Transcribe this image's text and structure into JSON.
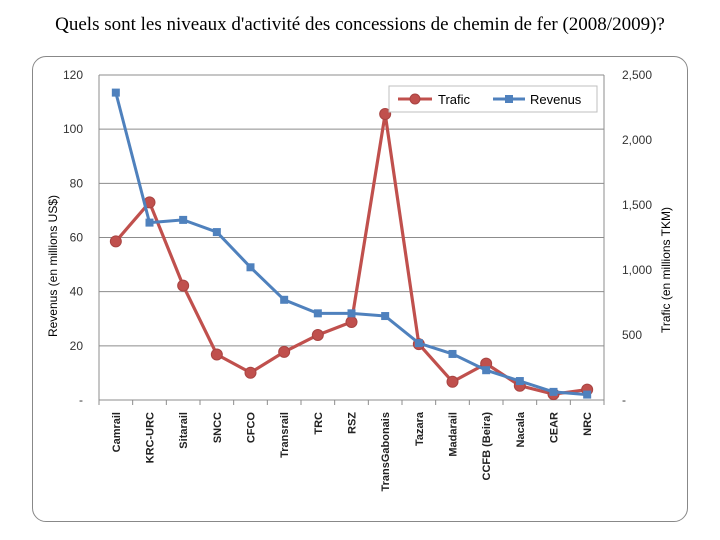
{
  "title": "Quels sont les niveaux d'activité des concessions de chemin de fer (2008/2009)?",
  "colors": {
    "trafic": "#c0504d",
    "revenus": "#4f81bd",
    "grid": "#8c8c8c"
  },
  "chart_data": {
    "type": "line",
    "categories": [
      "Camrail",
      "KRC-URC",
      "Sitarail",
      "SNCC",
      "CFCO",
      "Transrail",
      "TRC",
      "RSZ",
      "TransGabonais",
      "Tazara",
      "Madarail",
      "CCFB (Beira)",
      "Nacala",
      "CEAR",
      "NRC"
    ],
    "series": [
      {
        "name": "Trafic",
        "axis": "right",
        "marker": "circle",
        "values": [
          1220,
          1520,
          880,
          350,
          210,
          370,
          500,
          600,
          2200,
          430,
          140,
          280,
          110,
          45,
          80
        ]
      },
      {
        "name": "Revenus",
        "axis": "left",
        "marker": "square",
        "values": [
          113.5,
          65.5,
          66.5,
          62,
          49,
          37,
          32,
          32,
          31,
          21,
          17,
          11,
          7,
          3,
          2
        ]
      }
    ],
    "ylabel_left": "Revenus (en millions US$)",
    "ylabel_right": "Trafic (en millions TKM)",
    "ylim_left": [
      0,
      120
    ],
    "ylim_right": [
      0,
      2500
    ],
    "yticks_left": [
      "-",
      "20",
      "40",
      "60",
      "80",
      "100",
      "120"
    ],
    "yticks_right": [
      "-",
      "500",
      "1,000",
      "1,500",
      "2,000",
      "2,500"
    ],
    "grid": true,
    "legend": "top-right"
  }
}
